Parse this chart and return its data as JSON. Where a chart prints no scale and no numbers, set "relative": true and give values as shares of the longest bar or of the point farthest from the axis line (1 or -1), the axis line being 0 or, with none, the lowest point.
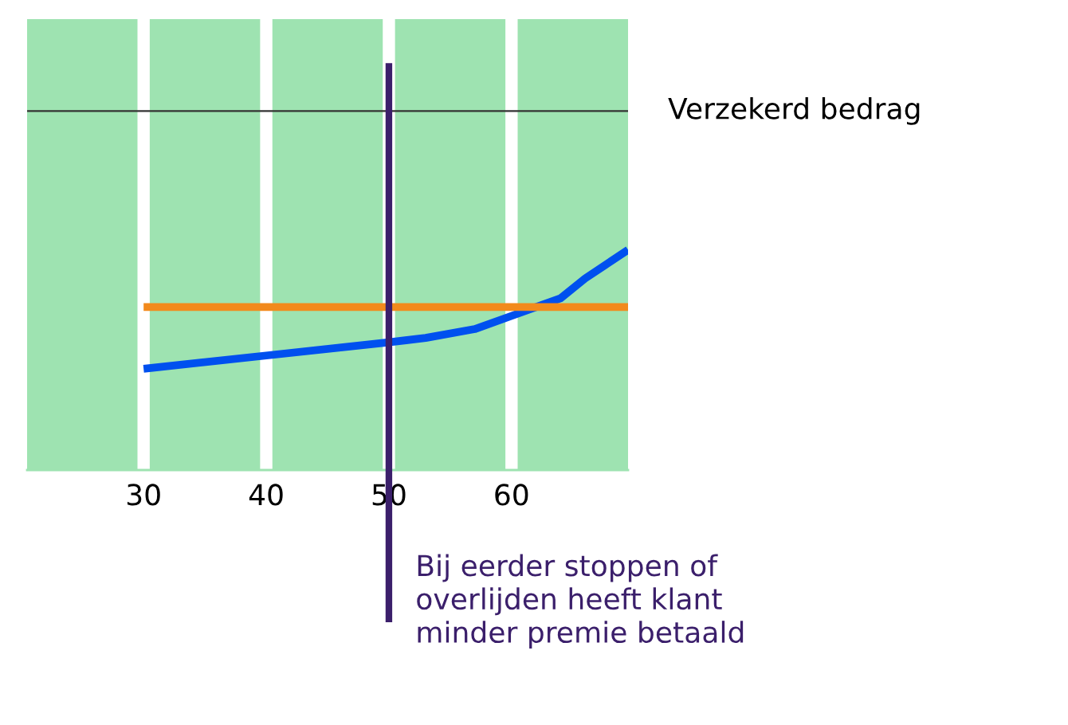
{
  "chart_data": {
    "type": "line",
    "relative": true,
    "xlim": [
      20.5,
      69.5
    ],
    "xticks": [
      30,
      40,
      50,
      60
    ],
    "series": [
      {
        "color": "#0050ef",
        "x": [
          30,
          40,
          50,
          53,
          57,
          60,
          62,
          64,
          66,
          69.5
        ],
        "values": [
          0.46,
          0.52,
          0.58,
          0.6,
          0.64,
          0.7,
          0.74,
          0.78,
          0.87,
          1.0
        ]
      },
      {
        "color": "#f28a1c",
        "x": [
          30,
          69.5
        ],
        "values": [
          0.74,
          0.74
        ]
      }
    ],
    "ref_lines": [
      {
        "axis": "y",
        "value": 1.63,
        "label": "Verzekerd bedrag",
        "color": "#333333"
      },
      {
        "axis": "x",
        "value": 50,
        "label": "Bij eerder stoppen of\noverlijden heeft klant\nminder premie betaald",
        "color": "#3b1f6b"
      }
    ],
    "bands": [
      {
        "axis": "x",
        "from": 20.5,
        "to": 29.5,
        "color": "#9ee3b1"
      },
      {
        "axis": "x",
        "from": 30.5,
        "to": 39.5,
        "color": "#9ee3b1"
      },
      {
        "axis": "x",
        "from": 40.5,
        "to": 49.5,
        "color": "#9ee3b1"
      },
      {
        "axis": "x",
        "from": 50.5,
        "to": 59.5,
        "color": "#9ee3b1"
      },
      {
        "axis": "x",
        "from": 60.5,
        "to": 69.5,
        "color": "#9ee3b1"
      }
    ],
    "grid": false,
    "legend": false,
    "tick_labels": "x"
  }
}
